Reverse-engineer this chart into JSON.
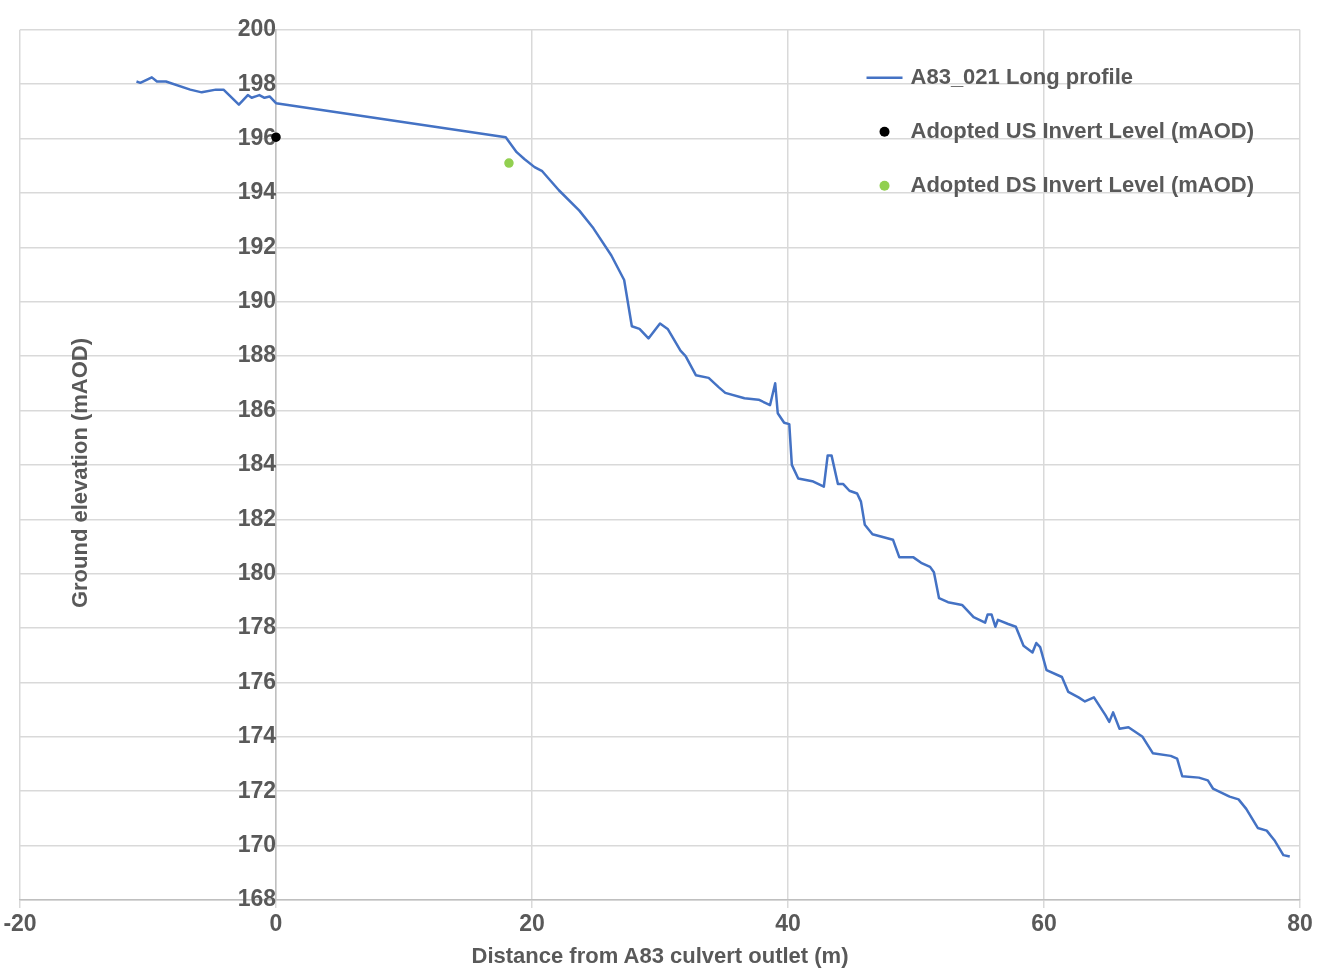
{
  "chart_data": {
    "type": "line",
    "xlabel": "Distance from A83 culvert outlet (m)",
    "ylabel": "Ground elevation (mAOD)",
    "xlim": [
      -20,
      80
    ],
    "xticks": [
      -20,
      0,
      20,
      40,
      60,
      80
    ],
    "ylim": [
      168,
      200
    ],
    "yticks": [
      168,
      170,
      172,
      174,
      176,
      178,
      180,
      182,
      184,
      186,
      188,
      190,
      192,
      194,
      196,
      198,
      200
    ],
    "grid": true,
    "legend": "top right",
    "series": [
      {
        "name": "A83_021 Long profile",
        "color": "#4472c4",
        "marker": "none",
        "x": [
          -10.9,
          -10.6,
          -9.7,
          -9.3,
          -8.6,
          -6.7,
          -5.8,
          -4.7,
          -4.1,
          -2.9,
          -2.2,
          -1.9,
          -1.3,
          -0.9,
          -0.5,
          0,
          17.95,
          18.8,
          19.4,
          20.2,
          20.8,
          22.1,
          23.7,
          24.8,
          26.2,
          27.2,
          27.8,
          28.4,
          29.1,
          30.0,
          30.6,
          31.6,
          32.0,
          32.8,
          33.8,
          34.6,
          35.1,
          36.6,
          37.7,
          38.6,
          39.0,
          39.2,
          39.7,
          40.1,
          40.3,
          40.8,
          41.9,
          42.8,
          43.1,
          43.4,
          43.9,
          44.3,
          44.8,
          45.4,
          45.7,
          46.0,
          46.6,
          48.2,
          48.7,
          49.8,
          50.4,
          51.1,
          51.4,
          51.8,
          52.5,
          53.6,
          54.5,
          55.4,
          55.6,
          55.9,
          56.2,
          56.4,
          57.2,
          57.8,
          58.4,
          59.1,
          59.4,
          59.7,
          60.2,
          61.4,
          61.9,
          62.7,
          63.2,
          63.9,
          64.8,
          65.1,
          65.4,
          65.9,
          66.6,
          67.7,
          68.5,
          69.9,
          70.4,
          70.8,
          72.1,
          72.8,
          73.2,
          74.5,
          75.2,
          75.8,
          76.7,
          77.4,
          78.0,
          78.7,
          79.2
        ],
        "values": [
          198.1,
          198.05,
          198.25,
          198.1,
          198.1,
          197.8,
          197.7,
          197.8,
          197.8,
          197.25,
          197.6,
          197.5,
          197.6,
          197.5,
          197.55,
          197.3,
          196.05,
          195.5,
          195.25,
          194.95,
          194.8,
          194.1,
          193.35,
          192.7,
          191.7,
          190.8,
          189.1,
          189.0,
          188.65,
          189.2,
          189.0,
          188.2,
          188.0,
          187.3,
          187.2,
          186.85,
          186.65,
          186.45,
          186.4,
          186.2,
          187.0,
          185.9,
          185.55,
          185.5,
          184.0,
          183.5,
          183.4,
          183.2,
          184.35,
          184.35,
          183.3,
          183.3,
          183.05,
          182.95,
          182.65,
          181.8,
          181.45,
          181.25,
          180.6,
          180.6,
          180.4,
          180.25,
          180.05,
          179.1,
          178.95,
          178.85,
          178.4,
          178.2,
          178.5,
          178.5,
          178.05,
          178.3,
          178.15,
          178.05,
          177.35,
          177.1,
          177.45,
          177.3,
          176.45,
          176.2,
          175.65,
          175.45,
          175.3,
          175.45,
          174.8,
          174.55,
          174.9,
          174.3,
          174.35,
          174.0,
          173.4,
          173.3,
          173.2,
          172.55,
          172.5,
          172.4,
          172.1,
          171.8,
          171.7,
          171.35,
          170.65,
          170.55,
          170.2,
          169.65,
          169.6
        ]
      },
      {
        "name": "Adopted US Invert Level (mAOD)",
        "type": "scatter",
        "color": "#000000",
        "marker": "circle",
        "x": [
          0
        ],
        "values": [
          196.05
        ]
      },
      {
        "name": "Adopted DS Invert Level (mAOD)",
        "type": "scatter",
        "color": "#92d050",
        "marker": "circle",
        "x": [
          18.2
        ],
        "values": [
          195.1
        ]
      }
    ]
  }
}
